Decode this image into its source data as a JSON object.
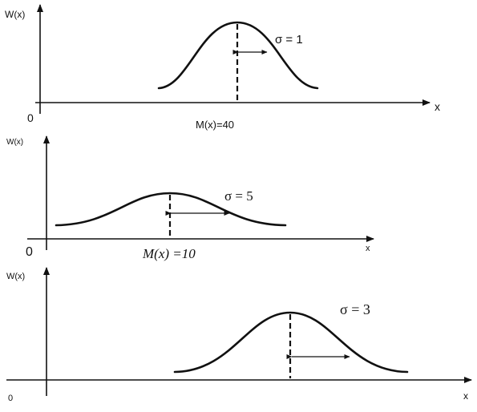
{
  "panels": [
    {
      "y_label": "W(x)",
      "x_label": "x",
      "origin_label": "0",
      "sigma_label": "σ = 1",
      "mean_label": "M(x)=40"
    },
    {
      "y_label": "W(x)",
      "x_label": "x",
      "origin_label": "0",
      "sigma_label": "σ = 5",
      "mean_label": "M(x) =10"
    },
    {
      "y_label": "W(x)",
      "x_label": "x",
      "origin_label": "0",
      "sigma_label": "σ = 3",
      "mean_label": ""
    }
  ]
}
